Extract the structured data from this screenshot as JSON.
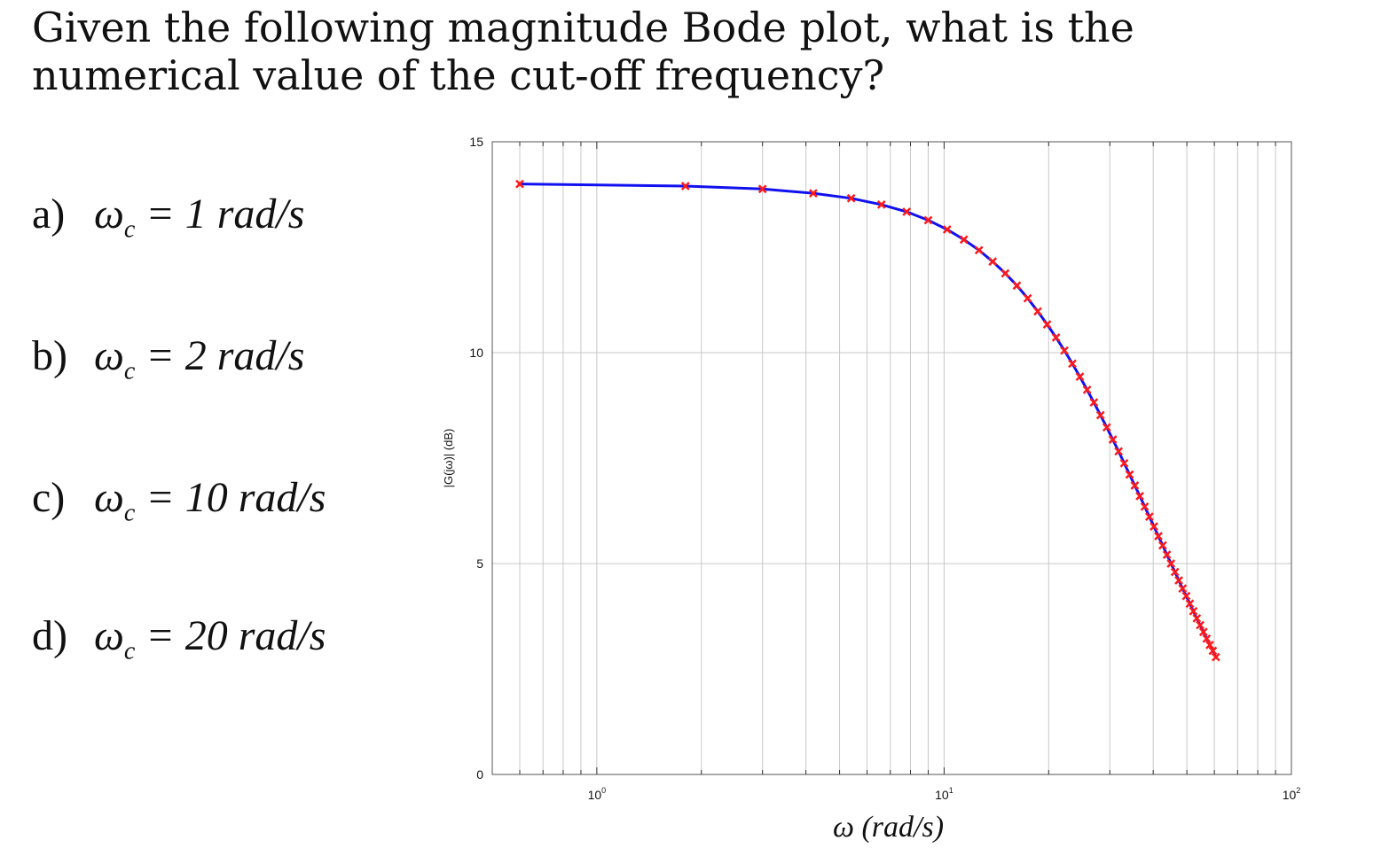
{
  "question": {
    "line1": "Given the following magnitude Bode plot, what is the",
    "line2": "numerical value of the cut-off frequency?"
  },
  "options": [
    {
      "letter": "a)",
      "symbol": "ω",
      "sub": "c",
      "expr": " = 1 rad/s"
    },
    {
      "letter": "b)",
      "symbol": "ω",
      "sub": "c",
      "expr": " = 2 rad/s"
    },
    {
      "letter": "c)",
      "symbol": "ω",
      "sub": "c",
      "expr": " = 10 rad/s"
    },
    {
      "letter": "d)",
      "symbol": "ω",
      "sub": "c",
      "expr": " = 20 rad/s"
    }
  ],
  "chart_data": {
    "type": "line",
    "xlabel": "ω (rad/s)",
    "ylabel": "|G(jω)| (dB)",
    "xscale": "log",
    "xlim": [
      0.5,
      100
    ],
    "ylim": [
      0,
      15
    ],
    "xticks": [
      {
        "v": 1,
        "base": "10",
        "exp": "0"
      },
      {
        "v": 10,
        "base": "10",
        "exp": "1"
      },
      {
        "v": 100,
        "base": "10",
        "exp": "2"
      }
    ],
    "yticks": [
      0,
      5,
      10,
      15
    ],
    "grid": true,
    "line_color": "#1010f0",
    "marker_color": "#ff1a1a",
    "series": [
      {
        "x": [
          0.6,
          1.8,
          3,
          4.2,
          5.4,
          6.6,
          7.8,
          9,
          10.2,
          11.4,
          12.6,
          13.8,
          15,
          16.2,
          17.4,
          18.6,
          19.8,
          21,
          22.2,
          23.4,
          24.6,
          25.8,
          27,
          28.2,
          29.4,
          30.6,
          31.8,
          33,
          34.2,
          35.4,
          36.6,
          37.8,
          39,
          40.2,
          41.4,
          42.6,
          43.8,
          45,
          46.2,
          47.4,
          48.6,
          49.8,
          51,
          52.2,
          53.4,
          54.6,
          55.8,
          57,
          58.2,
          59.4,
          60.6
        ],
        "y": [
          14.0,
          13.95,
          13.88,
          13.78,
          13.66,
          13.51,
          13.34,
          13.14,
          12.92,
          12.68,
          12.43,
          12.16,
          11.88,
          11.59,
          11.29,
          10.98,
          10.67,
          10.36,
          10.05,
          9.74,
          9.43,
          9.12,
          8.82,
          8.52,
          8.23,
          7.94,
          7.66,
          7.38,
          7.11,
          6.85,
          6.6,
          6.35,
          6.11,
          5.88,
          5.65,
          5.43,
          5.21,
          5.0,
          4.8,
          4.6,
          4.41,
          4.23,
          4.05,
          3.87,
          3.7,
          3.54,
          3.38,
          3.22,
          3.07,
          2.93,
          2.78
        ]
      }
    ]
  }
}
